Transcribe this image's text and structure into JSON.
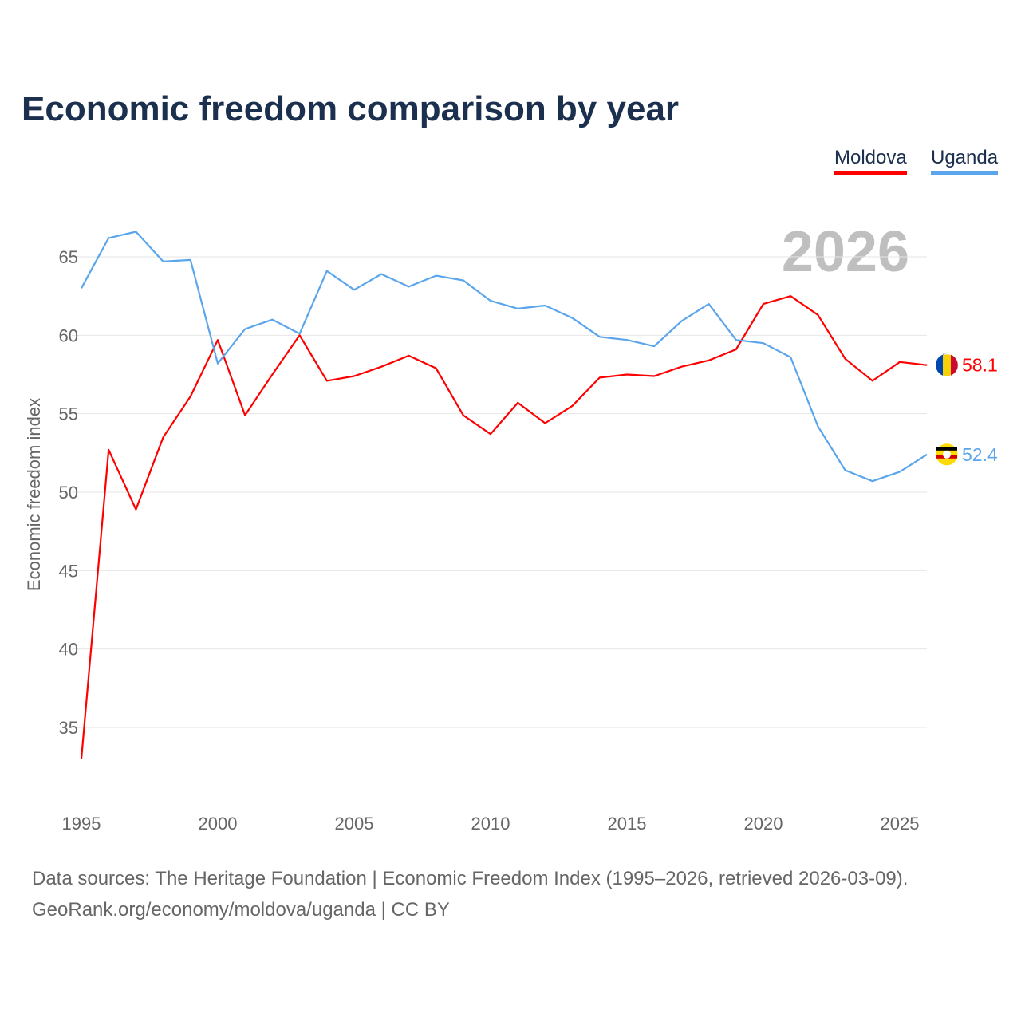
{
  "chart_data": {
    "type": "line",
    "title": "Economic freedom comparison by year",
    "xlabel": "",
    "ylabel": "Economic freedom index",
    "year_label": "2026",
    "xlim": [
      1995,
      2026
    ],
    "ylim": [
      30,
      68
    ],
    "x_ticks": [
      1995,
      2000,
      2005,
      2010,
      2015,
      2020,
      2025
    ],
    "y_ticks": [
      35,
      40,
      45,
      50,
      55,
      60,
      65
    ],
    "grid": true,
    "legend_position": "top-right",
    "x": [
      1995,
      1996,
      1997,
      1998,
      1999,
      2000,
      2001,
      2002,
      2003,
      2004,
      2005,
      2006,
      2007,
      2008,
      2009,
      2010,
      2011,
      2012,
      2013,
      2014,
      2015,
      2016,
      2017,
      2018,
      2019,
      2020,
      2021,
      2022,
      2023,
      2024,
      2025,
      2026
    ],
    "series": [
      {
        "name": "Moldova",
        "color": "#ff0000",
        "end_label": "58.1",
        "values": [
          33.0,
          52.7,
          48.9,
          53.5,
          56.1,
          59.7,
          54.9,
          57.5,
          60.0,
          57.1,
          57.4,
          58.0,
          58.7,
          57.9,
          54.9,
          53.7,
          55.7,
          54.4,
          55.5,
          57.3,
          57.5,
          57.4,
          58.0,
          58.4,
          59.1,
          62.0,
          62.5,
          61.3,
          58.5,
          57.1,
          58.3,
          58.1
        ]
      },
      {
        "name": "Uganda",
        "color": "#5aa5ec",
        "end_label": "52.4",
        "values": [
          63.0,
          66.2,
          66.6,
          64.7,
          64.8,
          58.2,
          60.4,
          61.0,
          60.1,
          64.1,
          62.9,
          63.9,
          63.1,
          63.8,
          63.5,
          62.2,
          61.7,
          61.9,
          61.1,
          59.9,
          59.7,
          59.3,
          60.9,
          62.0,
          59.7,
          59.5,
          58.6,
          54.2,
          51.4,
          50.7,
          51.3,
          52.4
        ]
      }
    ]
  },
  "footer": {
    "line1": "Data sources: The Heritage Foundation | Economic Freedom Index (1995–2026, retrieved 2026-03-09).",
    "line2": "GeoRank.org/economy/moldova/uganda | CC BY"
  }
}
